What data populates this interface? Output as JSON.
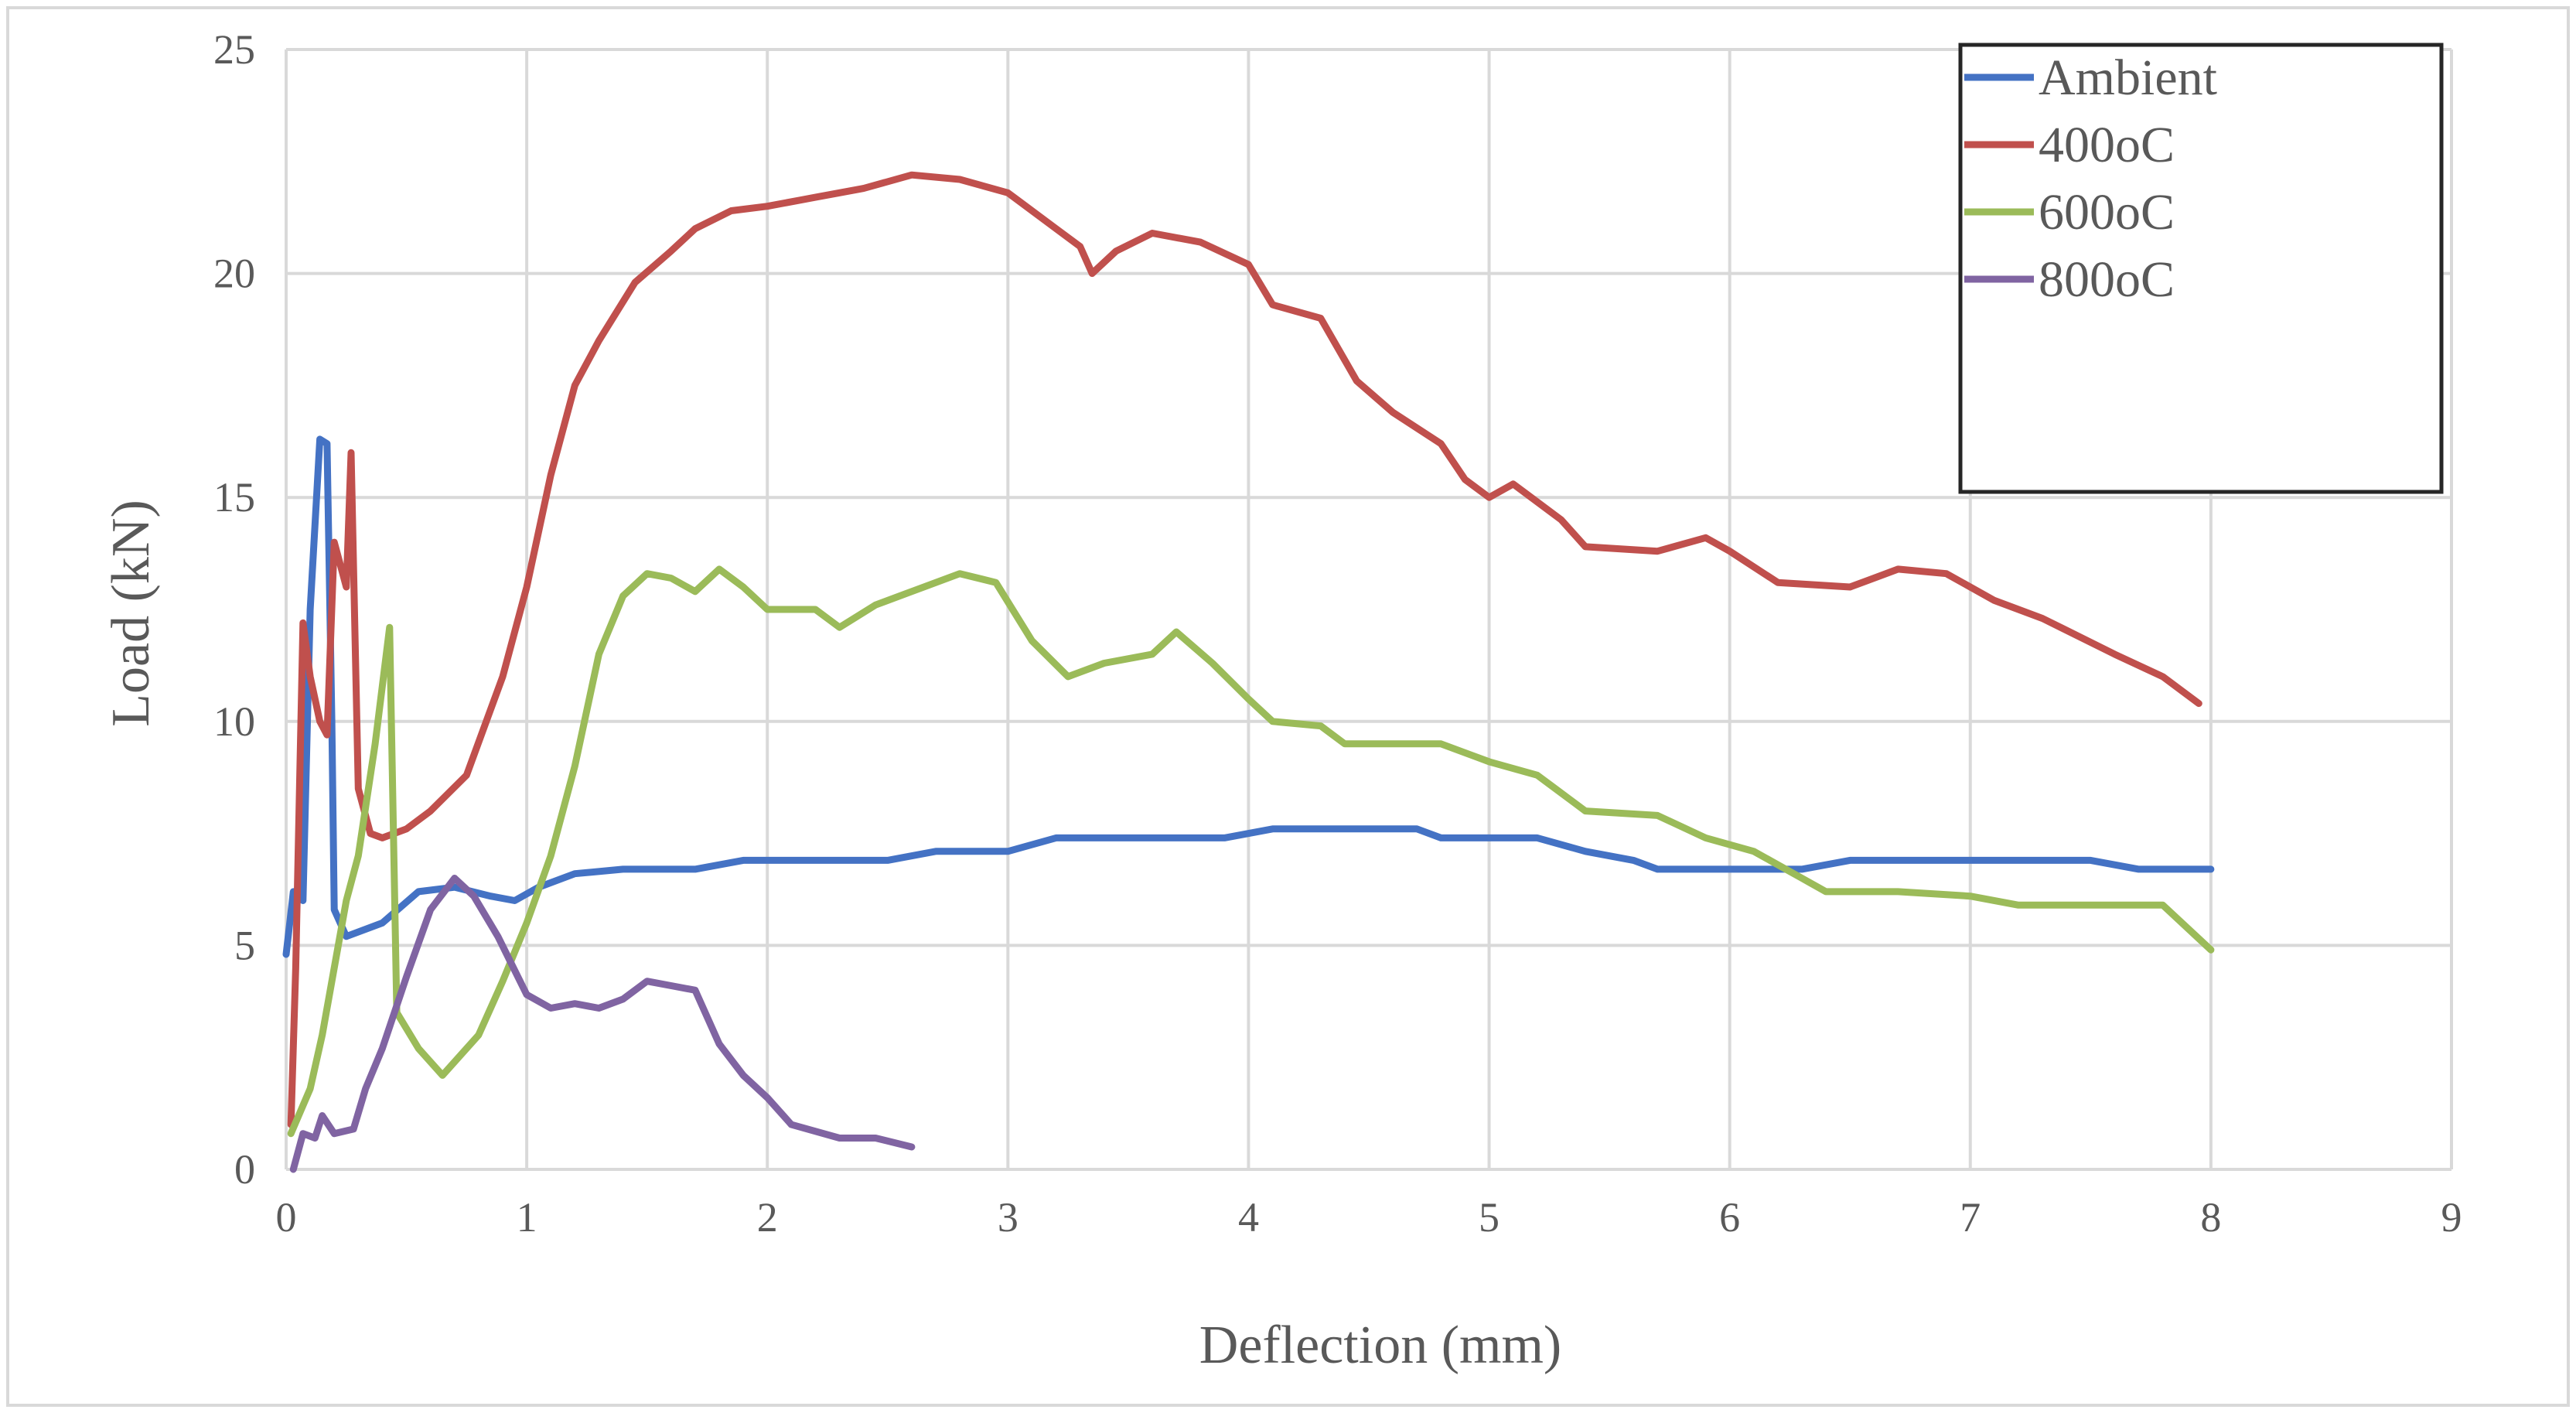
{
  "chart_data": {
    "type": "line",
    "title": "",
    "xlabel": "Deflection (mm)",
    "ylabel": "Load (kN)",
    "xlim": [
      0,
      9
    ],
    "ylim": [
      0,
      25
    ],
    "x_ticks": [
      "0",
      "1",
      "2",
      "3",
      "4",
      "5",
      "6",
      "7",
      "8",
      "9"
    ],
    "y_ticks": [
      "0",
      "5",
      "10",
      "15",
      "20",
      "25"
    ],
    "grid": true,
    "legend_position": "top-right",
    "series": [
      {
        "name": "Ambient",
        "color": "#4472c4",
        "points": [
          [
            0,
            4.8
          ],
          [
            0.03,
            6.2
          ],
          [
            0.07,
            6.0
          ],
          [
            0.1,
            12.5
          ],
          [
            0.14,
            16.3
          ],
          [
            0.17,
            16.2
          ],
          [
            0.19,
            10.0
          ],
          [
            0.2,
            5.8
          ],
          [
            0.25,
            5.2
          ],
          [
            0.4,
            5.5
          ],
          [
            0.55,
            6.2
          ],
          [
            0.7,
            6.3
          ],
          [
            0.85,
            6.1
          ],
          [
            0.95,
            6.0
          ],
          [
            1.05,
            6.3
          ],
          [
            1.2,
            6.6
          ],
          [
            1.4,
            6.7
          ],
          [
            1.7,
            6.7
          ],
          [
            1.9,
            6.9
          ],
          [
            2.2,
            6.9
          ],
          [
            2.5,
            6.9
          ],
          [
            2.7,
            7.1
          ],
          [
            3.0,
            7.1
          ],
          [
            3.2,
            7.4
          ],
          [
            3.6,
            7.4
          ],
          [
            3.9,
            7.4
          ],
          [
            4.1,
            7.6
          ],
          [
            4.4,
            7.6
          ],
          [
            4.7,
            7.6
          ],
          [
            4.8,
            7.4
          ],
          [
            5.2,
            7.4
          ],
          [
            5.4,
            7.1
          ],
          [
            5.6,
            6.9
          ],
          [
            5.7,
            6.7
          ],
          [
            6.0,
            6.7
          ],
          [
            6.3,
            6.7
          ],
          [
            6.5,
            6.9
          ],
          [
            6.8,
            6.9
          ],
          [
            7.2,
            6.9
          ],
          [
            7.5,
            6.9
          ],
          [
            7.7,
            6.7
          ],
          [
            8.0,
            6.7
          ]
        ]
      },
      {
        "name": "400oC",
        "color": "#c0504d",
        "points": [
          [
            0.02,
            1.0
          ],
          [
            0.04,
            4.5
          ],
          [
            0.07,
            12.2
          ],
          [
            0.1,
            11.0
          ],
          [
            0.14,
            10.0
          ],
          [
            0.17,
            9.7
          ],
          [
            0.2,
            14.0
          ],
          [
            0.25,
            13.0
          ],
          [
            0.27,
            16.0
          ],
          [
            0.3,
            8.5
          ],
          [
            0.35,
            7.5
          ],
          [
            0.4,
            7.4
          ],
          [
            0.5,
            7.6
          ],
          [
            0.6,
            8.0
          ],
          [
            0.75,
            8.8
          ],
          [
            0.9,
            11.0
          ],
          [
            1.0,
            13.0
          ],
          [
            1.1,
            15.5
          ],
          [
            1.2,
            17.5
          ],
          [
            1.3,
            18.5
          ],
          [
            1.45,
            19.8
          ],
          [
            1.6,
            20.5
          ],
          [
            1.7,
            21.0
          ],
          [
            1.85,
            21.4
          ],
          [
            2.0,
            21.5
          ],
          [
            2.2,
            21.7
          ],
          [
            2.4,
            21.9
          ],
          [
            2.6,
            22.2
          ],
          [
            2.8,
            22.1
          ],
          [
            3.0,
            21.8
          ],
          [
            3.2,
            21.0
          ],
          [
            3.3,
            20.6
          ],
          [
            3.35,
            20.0
          ],
          [
            3.45,
            20.5
          ],
          [
            3.6,
            20.9
          ],
          [
            3.8,
            20.7
          ],
          [
            4.0,
            20.2
          ],
          [
            4.1,
            19.3
          ],
          [
            4.3,
            19.0
          ],
          [
            4.45,
            17.6
          ],
          [
            4.6,
            16.9
          ],
          [
            4.8,
            16.2
          ],
          [
            4.9,
            15.4
          ],
          [
            5.0,
            15.0
          ],
          [
            5.1,
            15.3
          ],
          [
            5.3,
            14.5
          ],
          [
            5.4,
            13.9
          ],
          [
            5.7,
            13.8
          ],
          [
            5.9,
            14.1
          ],
          [
            6.0,
            13.8
          ],
          [
            6.2,
            13.1
          ],
          [
            6.5,
            13.0
          ],
          [
            6.7,
            13.4
          ],
          [
            6.9,
            13.3
          ],
          [
            7.1,
            12.7
          ],
          [
            7.3,
            12.3
          ],
          [
            7.6,
            11.5
          ],
          [
            7.8,
            11.0
          ],
          [
            7.95,
            10.4
          ]
        ]
      },
      {
        "name": "600oC",
        "color": "#9bbb59",
        "points": [
          [
            0.02,
            0.8
          ],
          [
            0.1,
            1.8
          ],
          [
            0.15,
            3.0
          ],
          [
            0.2,
            4.5
          ],
          [
            0.25,
            6.0
          ],
          [
            0.3,
            7.0
          ],
          [
            0.37,
            9.5
          ],
          [
            0.43,
            12.1
          ],
          [
            0.46,
            3.5
          ],
          [
            0.55,
            2.7
          ],
          [
            0.65,
            2.1
          ],
          [
            0.8,
            3.0
          ],
          [
            0.9,
            4.2
          ],
          [
            1.0,
            5.5
          ],
          [
            1.1,
            7.0
          ],
          [
            1.2,
            9.0
          ],
          [
            1.3,
            11.5
          ],
          [
            1.4,
            12.8
          ],
          [
            1.5,
            13.3
          ],
          [
            1.6,
            13.2
          ],
          [
            1.7,
            12.9
          ],
          [
            1.8,
            13.4
          ],
          [
            1.9,
            13.0
          ],
          [
            2.0,
            12.5
          ],
          [
            2.2,
            12.5
          ],
          [
            2.3,
            12.1
          ],
          [
            2.45,
            12.6
          ],
          [
            2.6,
            12.9
          ],
          [
            2.8,
            13.3
          ],
          [
            2.95,
            13.1
          ],
          [
            3.1,
            11.8
          ],
          [
            3.25,
            11.0
          ],
          [
            3.4,
            11.3
          ],
          [
            3.6,
            11.5
          ],
          [
            3.7,
            12.0
          ],
          [
            3.85,
            11.3
          ],
          [
            4.0,
            10.5
          ],
          [
            4.1,
            10.0
          ],
          [
            4.3,
            9.9
          ],
          [
            4.4,
            9.5
          ],
          [
            4.6,
            9.5
          ],
          [
            4.8,
            9.5
          ],
          [
            5.0,
            9.1
          ],
          [
            5.2,
            8.8
          ],
          [
            5.4,
            8.0
          ],
          [
            5.7,
            7.9
          ],
          [
            5.9,
            7.4
          ],
          [
            6.1,
            7.1
          ],
          [
            6.3,
            6.5
          ],
          [
            6.4,
            6.2
          ],
          [
            6.7,
            6.2
          ],
          [
            7.0,
            6.1
          ],
          [
            7.2,
            5.9
          ],
          [
            7.5,
            5.9
          ],
          [
            7.6,
            5.9
          ],
          [
            7.8,
            5.9
          ],
          [
            8.0,
            4.9
          ]
        ]
      },
      {
        "name": "800oC",
        "color": "#8064a2",
        "points": [
          [
            0.03,
            0.0
          ],
          [
            0.07,
            0.8
          ],
          [
            0.12,
            0.7
          ],
          [
            0.15,
            1.2
          ],
          [
            0.2,
            0.8
          ],
          [
            0.28,
            0.9
          ],
          [
            0.33,
            1.8
          ],
          [
            0.4,
            2.7
          ],
          [
            0.5,
            4.3
          ],
          [
            0.6,
            5.8
          ],
          [
            0.7,
            6.5
          ],
          [
            0.78,
            6.1
          ],
          [
            0.88,
            5.2
          ],
          [
            1.0,
            3.9
          ],
          [
            1.1,
            3.6
          ],
          [
            1.2,
            3.7
          ],
          [
            1.3,
            3.6
          ],
          [
            1.4,
            3.8
          ],
          [
            1.5,
            4.2
          ],
          [
            1.6,
            4.1
          ],
          [
            1.7,
            4.0
          ],
          [
            1.8,
            2.8
          ],
          [
            1.9,
            2.1
          ],
          [
            2.0,
            1.6
          ],
          [
            2.1,
            1.0
          ],
          [
            2.3,
            0.7
          ],
          [
            2.45,
            0.7
          ],
          [
            2.6,
            0.5
          ]
        ]
      }
    ]
  }
}
